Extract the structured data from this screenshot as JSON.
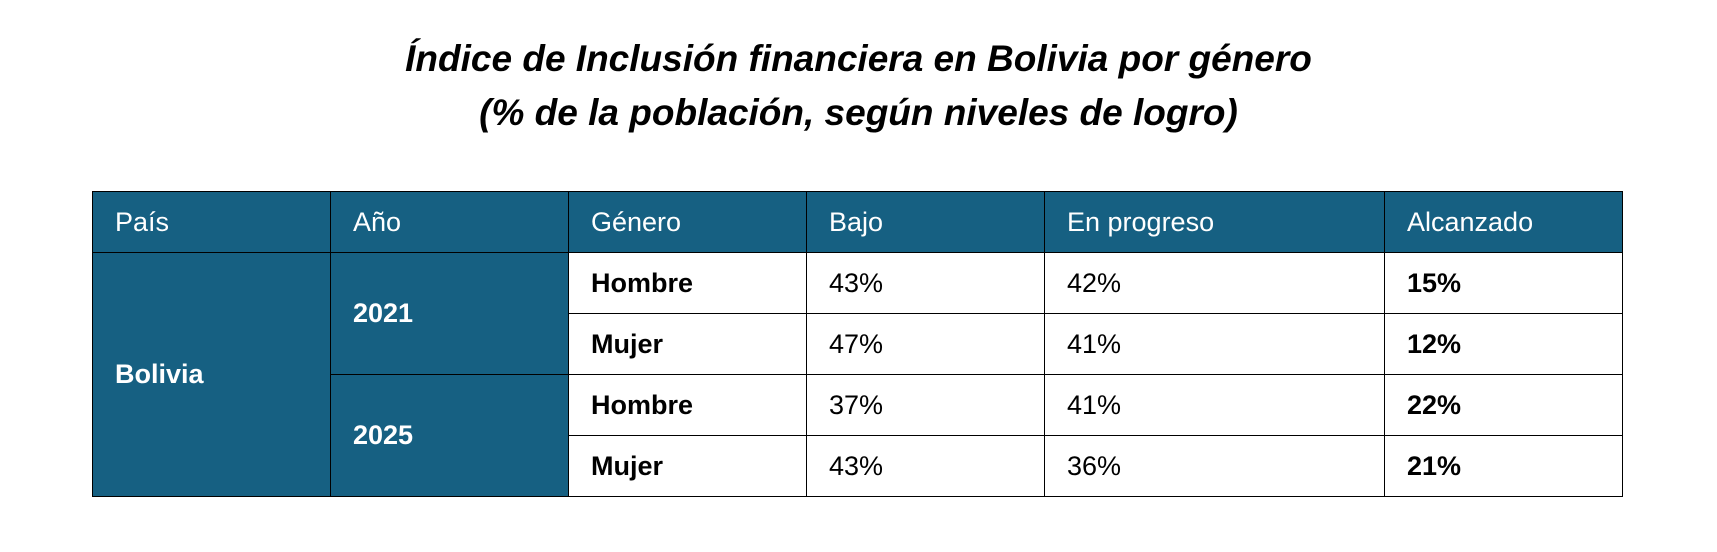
{
  "title": {
    "line1": "Índice de Inclusión financiera en Bolivia por género",
    "line2": "(% de la población, según niveles de logro)"
  },
  "table": {
    "headers": [
      "País",
      "Año",
      "Género",
      "Bajo",
      "En progreso",
      "Alcanzado"
    ],
    "country": "Bolivia",
    "years": [
      "2021",
      "2025"
    ],
    "rows": [
      {
        "genero": "Hombre",
        "bajo": "43%",
        "en_progreso": "42%",
        "alcanzado": "15%"
      },
      {
        "genero": "Mujer",
        "bajo": "47%",
        "en_progreso": "41%",
        "alcanzado": "12%"
      },
      {
        "genero": "Hombre",
        "bajo": "37%",
        "en_progreso": "41%",
        "alcanzado": "22%"
      },
      {
        "genero": "Mujer",
        "bajo": "43%",
        "en_progreso": "36%",
        "alcanzado": "21%"
      }
    ]
  },
  "colors": {
    "header_bg": "#166082",
    "header_text": "#ffffff",
    "border": "#000000"
  }
}
